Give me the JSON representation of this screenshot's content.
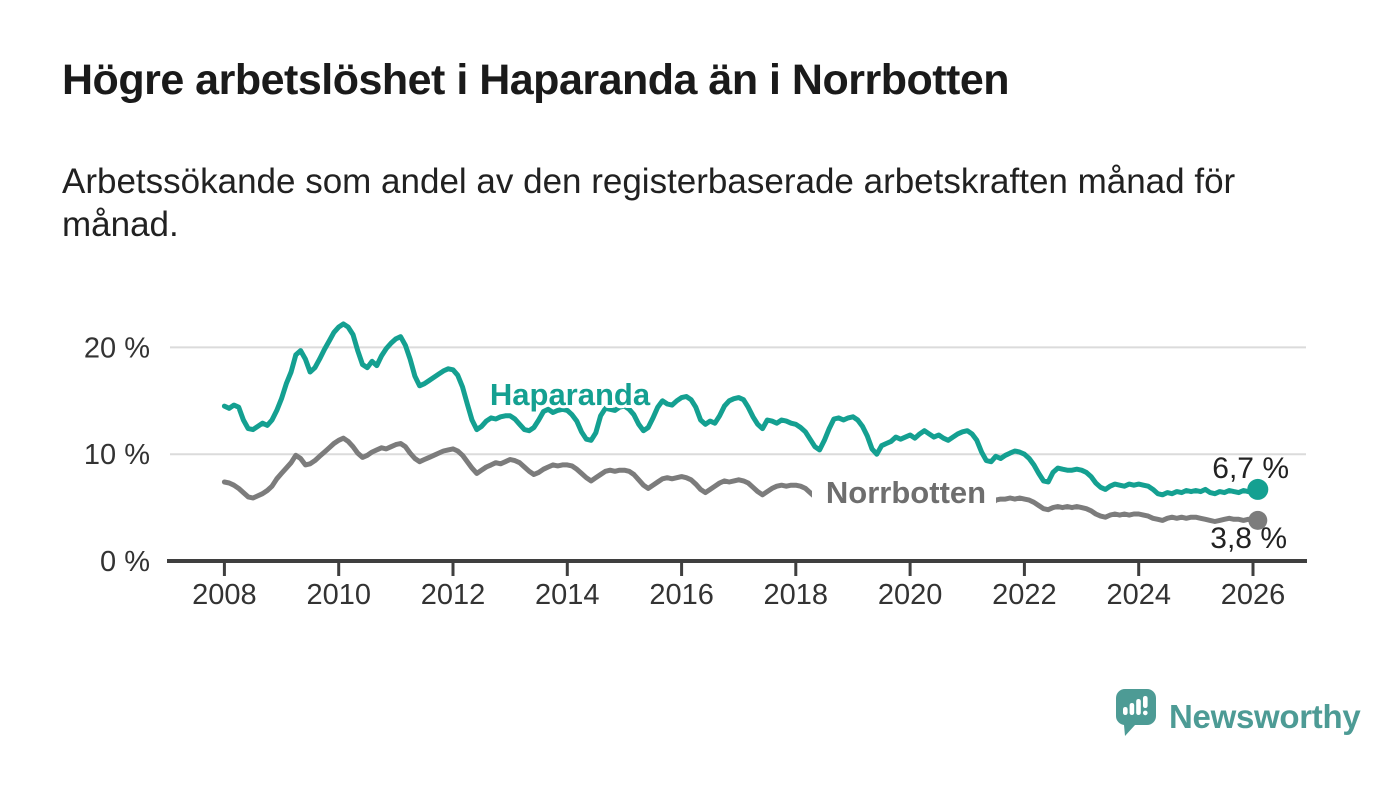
{
  "chart_data": {
    "type": "line",
    "title": "Högre arbetslöshet i Haparanda än i Norrbotten",
    "subtitle_lines": [
      "Arbetssökande som andel av den registerbaserade arbetskraften månad för",
      "månad."
    ],
    "unit": "%",
    "x_axis": {
      "start_year": 2008,
      "start_month": 1,
      "frequency": "monthly",
      "ticks": [
        2008,
        2010,
        2012,
        2014,
        2016,
        2018,
        2020,
        2022,
        2024,
        2026
      ]
    },
    "y_axis": {
      "ylim": [
        0,
        22.5
      ],
      "ticks": [
        {
          "value": 0,
          "label": "0 %"
        },
        {
          "value": 10,
          "label": "10 %"
        },
        {
          "value": 20,
          "label": "20 %"
        }
      ]
    },
    "style": {
      "grid_color": "#DBDBDB",
      "axis_color": "#3F3F3F",
      "tick_label_color": "#333333",
      "grid_on": true,
      "legend": "inline-series-labels"
    },
    "series": [
      {
        "name": "Haparanda",
        "color": "#14A091",
        "label_color": "#14A091",
        "end_label": "6,7 %",
        "end_value": 6.7,
        "values": [
          14.5,
          14.3,
          14.6,
          14.4,
          13.2,
          12.4,
          12.3,
          12.6,
          12.9,
          12.7,
          13.2,
          14.1,
          15.2,
          16.6,
          17.7,
          19.3,
          19.7,
          18.9,
          17.7,
          18.1,
          18.9,
          19.8,
          20.6,
          21.4,
          21.9,
          22.2,
          21.9,
          21.2,
          19.7,
          18.4,
          18.1,
          18.7,
          18.3,
          19.2,
          19.9,
          20.4,
          20.8,
          21.0,
          20.2,
          18.9,
          17.3,
          16.4,
          16.6,
          16.9,
          17.2,
          17.5,
          17.8,
          18.0,
          17.9,
          17.4,
          16.3,
          14.7,
          13.2,
          12.3,
          12.6,
          13.1,
          13.4,
          13.3,
          13.5,
          13.6,
          13.6,
          13.3,
          12.8,
          12.3,
          12.2,
          12.5,
          13.2,
          14.0,
          14.2,
          13.9,
          14.1,
          14.2,
          14.1,
          13.7,
          13.1,
          12.1,
          11.4,
          11.3,
          12.0,
          13.6,
          14.3,
          14.2,
          14.1,
          14.4,
          14.5,
          14.2,
          13.7,
          12.8,
          12.2,
          12.5,
          13.4,
          14.4,
          15.0,
          14.7,
          14.6,
          15.0,
          15.3,
          15.4,
          15.1,
          14.4,
          13.2,
          12.8,
          13.1,
          12.9,
          13.6,
          14.5,
          15.0,
          15.2,
          15.3,
          15.1,
          14.4,
          13.5,
          12.8,
          12.4,
          13.2,
          13.1,
          12.9,
          13.2,
          13.1,
          12.9,
          12.8,
          12.5,
          12.1,
          11.4,
          10.7,
          10.4,
          11.3,
          12.4,
          13.3,
          13.4,
          13.2,
          13.4,
          13.5,
          13.2,
          12.6,
          11.7,
          10.5,
          10.0,
          10.8,
          11.0,
          11.2,
          11.6,
          11.4,
          11.6,
          11.8,
          11.5,
          11.9,
          12.2,
          11.9,
          11.6,
          11.8,
          11.5,
          11.3,
          11.6,
          11.9,
          12.1,
          12.2,
          11.9,
          11.3,
          10.2,
          9.4,
          9.3,
          9.8,
          9.6,
          9.9,
          10.1,
          10.3,
          10.2,
          10.0,
          9.6,
          9.0,
          8.2,
          7.5,
          7.4,
          8.3,
          8.7,
          8.6,
          8.5,
          8.5,
          8.6,
          8.5,
          8.3,
          7.9,
          7.3,
          6.9,
          6.7,
          7.0,
          7.2,
          7.1,
          7.0,
          7.2,
          7.1,
          7.2,
          7.1,
          7.0,
          6.7,
          6.3,
          6.2,
          6.4,
          6.3,
          6.5,
          6.4,
          6.6,
          6.5,
          6.6,
          6.5,
          6.7,
          6.4,
          6.3,
          6.5,
          6.4,
          6.6,
          6.5,
          6.4,
          6.6,
          6.5,
          6.6,
          6.7
        ]
      },
      {
        "name": "Norrbotten",
        "color": "#7C7C7C",
        "label_color": "#6E6E6E",
        "end_label": "3,8 %",
        "end_value": 3.8,
        "values": [
          7.4,
          7.3,
          7.1,
          6.8,
          6.4,
          6.0,
          5.9,
          6.1,
          6.3,
          6.6,
          7.0,
          7.7,
          8.2,
          8.7,
          9.2,
          9.9,
          9.6,
          9.0,
          9.1,
          9.4,
          9.8,
          10.2,
          10.6,
          11.0,
          11.3,
          11.5,
          11.2,
          10.7,
          10.1,
          9.7,
          9.9,
          10.2,
          10.4,
          10.6,
          10.5,
          10.7,
          10.9,
          11.0,
          10.7,
          10.1,
          9.6,
          9.3,
          9.5,
          9.7,
          9.9,
          10.1,
          10.3,
          10.4,
          10.5,
          10.3,
          9.9,
          9.3,
          8.7,
          8.2,
          8.5,
          8.8,
          9.0,
          9.2,
          9.1,
          9.3,
          9.5,
          9.4,
          9.2,
          8.8,
          8.4,
          8.1,
          8.3,
          8.6,
          8.8,
          9.0,
          8.9,
          9.0,
          9.0,
          8.9,
          8.6,
          8.2,
          7.8,
          7.5,
          7.8,
          8.1,
          8.4,
          8.5,
          8.4,
          8.5,
          8.5,
          8.4,
          8.1,
          7.6,
          7.1,
          6.8,
          7.1,
          7.4,
          7.7,
          7.8,
          7.7,
          7.8,
          7.9,
          7.8,
          7.6,
          7.2,
          6.7,
          6.4,
          6.7,
          7.0,
          7.3,
          7.5,
          7.4,
          7.5,
          7.6,
          7.5,
          7.3,
          6.9,
          6.5,
          6.2,
          6.5,
          6.8,
          7.0,
          7.1,
          7.0,
          7.1,
          7.1,
          7.0,
          6.8,
          6.4,
          6.0,
          5.8,
          6.0,
          6.2,
          6.4,
          6.5,
          6.4,
          6.5,
          6.5,
          6.4,
          6.2,
          5.9,
          5.6,
          5.4,
          5.6,
          5.8,
          6.0,
          6.1,
          6.0,
          6.1,
          6.2,
          6.1,
          6.4,
          6.7,
          6.5,
          6.3,
          6.4,
          6.2,
          6.1,
          6.0,
          5.9,
          6.0,
          6.0,
          5.9,
          5.7,
          5.4,
          5.2,
          5.3,
          5.7,
          5.8,
          5.8,
          5.9,
          5.8,
          5.9,
          5.8,
          5.7,
          5.5,
          5.2,
          4.9,
          4.8,
          5.0,
          5.1,
          5.0,
          5.1,
          5.0,
          5.1,
          5.0,
          4.9,
          4.7,
          4.4,
          4.2,
          4.1,
          4.3,
          4.4,
          4.3,
          4.4,
          4.3,
          4.4,
          4.4,
          4.3,
          4.2,
          4.0,
          3.9,
          3.8,
          4.0,
          4.1,
          4.0,
          4.1,
          4.0,
          4.1,
          4.1,
          4.0,
          3.9,
          3.8,
          3.7,
          3.8,
          3.9,
          4.0,
          3.9,
          3.9,
          3.8,
          3.9,
          3.8,
          3.8
        ]
      }
    ]
  },
  "footer": {
    "brand": "Newsworthy",
    "logo_color": "#4D9B95",
    "logo_icon": "speech-bubble-bar-chart"
  }
}
